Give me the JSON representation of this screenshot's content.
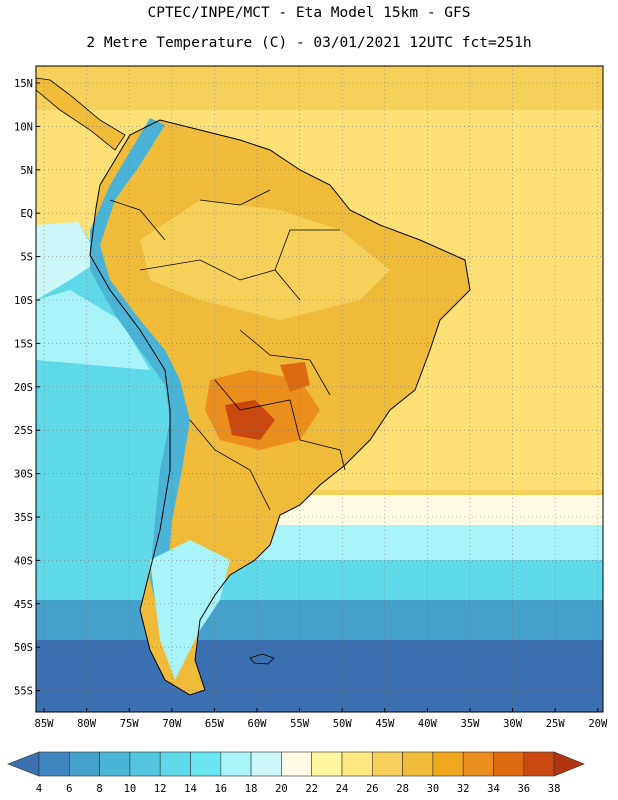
{
  "title_line1": "CPTEC/INPE/MCT -  Eta Model 15km - GFS",
  "title_line2": "2 Metre Temperature (C) - 03/01/2021 12UTC fct=251h",
  "lat_labels": [
    "15N",
    "10N",
    "5N",
    "EQ",
    "5S",
    "10S",
    "15S",
    "20S",
    "25S",
    "30S",
    "35S",
    "40S",
    "45S",
    "50S",
    "55S"
  ],
  "lon_labels": [
    "85W",
    "80W",
    "75W",
    "70W",
    "65W",
    "60W",
    "55W",
    "50W",
    "45W",
    "40W",
    "35W",
    "30W",
    "25W",
    "20W"
  ],
  "colorbar": {
    "values": [
      "4",
      "6",
      "8",
      "10",
      "12",
      "14",
      "16",
      "18",
      "20",
      "22",
      "24",
      "26",
      "28",
      "30",
      "32",
      "34",
      "36",
      "38"
    ],
    "colors": [
      "#3a6fb2",
      "#3f86c0",
      "#46a0cc",
      "#4bb4d6",
      "#54c6e0",
      "#5fd8ea",
      "#6ae6f2",
      "#a8f3f8",
      "#cdf8fa",
      "#fffbe4",
      "#fff6a0",
      "#fde580",
      "#f7d05a",
      "#f1bb3a",
      "#f0a81e",
      "#ea8e1c",
      "#de6a12",
      "#c84810",
      "#b23410"
    ]
  },
  "map_colors": {
    "deep_ocean": "#3a6fb2",
    "cold_ocean": "#46a0cc",
    "cool_ocean": "#5fd8ea",
    "mild_ocean": "#a8f3f8",
    "warm_ocean": "#fde580",
    "tropical_ocean": "#f7d05a",
    "land_warm": "#f1bb3a",
    "land_hot": "#ea8e1c",
    "land_hottest": "#c84810",
    "andes": "#4bb4d6"
  }
}
